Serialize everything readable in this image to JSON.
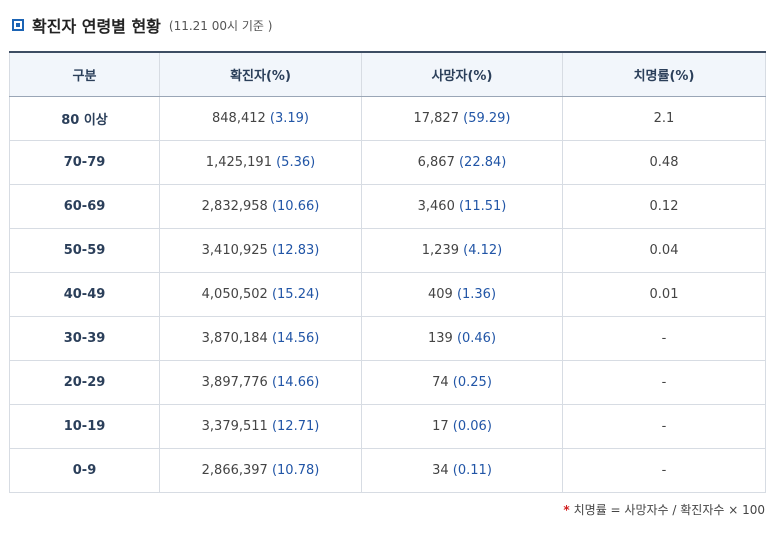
{
  "section": {
    "title": "확진자 연령별 현황",
    "subtitle": "(11.21 00시 기준 )"
  },
  "table": {
    "headers": [
      "구분",
      "확진자(%)",
      "사망자(%)",
      "치명률(%)"
    ],
    "rows": [
      {
        "age": "80 이상",
        "cases": "848,412",
        "cases_pct": "(3.19)",
        "deaths": "17,827",
        "deaths_pct": "(59.29)",
        "rate": "2.1"
      },
      {
        "age": "70-79",
        "cases": "1,425,191",
        "cases_pct": "(5.36)",
        "deaths": "6,867",
        "deaths_pct": "(22.84)",
        "rate": "0.48"
      },
      {
        "age": "60-69",
        "cases": "2,832,958",
        "cases_pct": "(10.66)",
        "deaths": "3,460",
        "deaths_pct": "(11.51)",
        "rate": "0.12"
      },
      {
        "age": "50-59",
        "cases": "3,410,925",
        "cases_pct": "(12.83)",
        "deaths": "1,239",
        "deaths_pct": "(4.12)",
        "rate": "0.04"
      },
      {
        "age": "40-49",
        "cases": "4,050,502",
        "cases_pct": "(15.24)",
        "deaths": "409",
        "deaths_pct": "(1.36)",
        "rate": "0.01"
      },
      {
        "age": "30-39",
        "cases": "3,870,184",
        "cases_pct": "(14.56)",
        "deaths": "139",
        "deaths_pct": "(0.46)",
        "rate": "-"
      },
      {
        "age": "20-29",
        "cases": "3,897,776",
        "cases_pct": "(14.66)",
        "deaths": "74",
        "deaths_pct": "(0.25)",
        "rate": "-"
      },
      {
        "age": "10-19",
        "cases": "3,379,511",
        "cases_pct": "(12.71)",
        "deaths": "17",
        "deaths_pct": "(0.06)",
        "rate": "-"
      },
      {
        "age": "0-9",
        "cases": "2,866,397",
        "cases_pct": "(10.78)",
        "deaths": "34",
        "deaths_pct": "(0.11)",
        "rate": "-"
      }
    ]
  },
  "footnote": {
    "marker": "*",
    "text": "치명률 = 사망자수 / 확진자수 × 100"
  },
  "colors": {
    "accent": "#1c64b4",
    "value_blue": "#2155a6",
    "header_bg": "#f2f6fb",
    "border": "#d7dce3",
    "footnote_marker": "#d21f1f"
  }
}
